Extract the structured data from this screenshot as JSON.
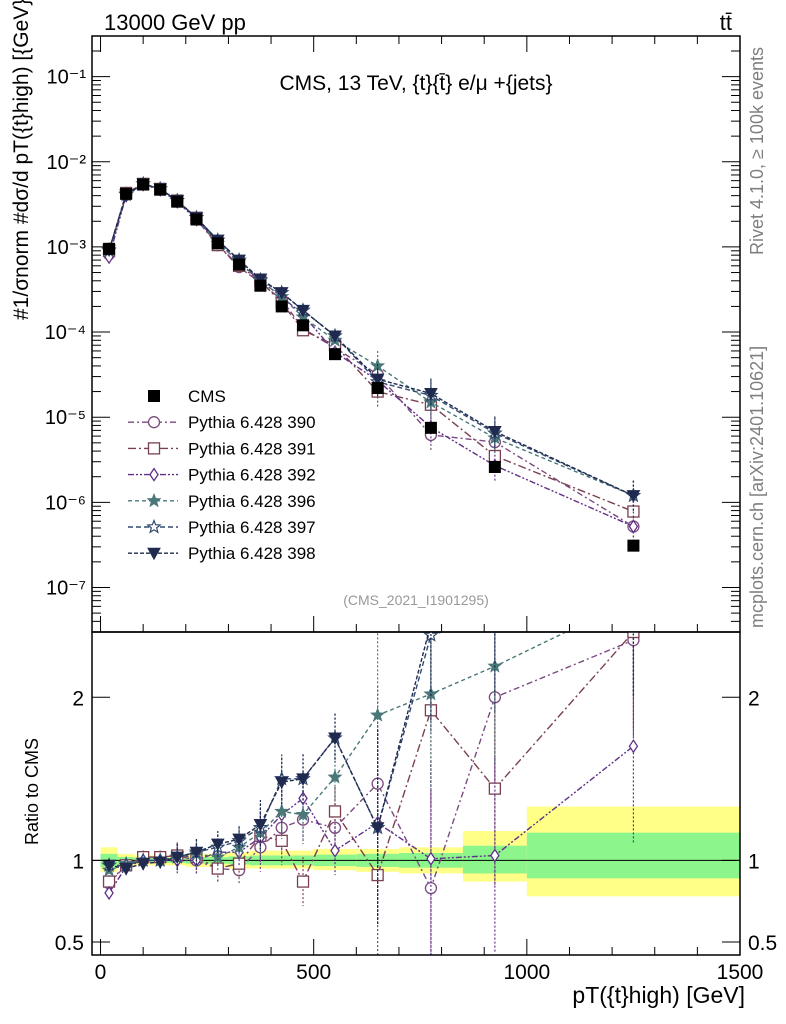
{
  "header": {
    "left": "13000 GeV pp",
    "right": "tt̄"
  },
  "side_labels": {
    "top": "Rivet 4.1.0, ≥ 100k events",
    "bottom": "mcplots.cern.ch [arXiv:2401.10621]"
  },
  "analysis_id": "(CMS_2021_I1901295)",
  "chart_data": [
    {
      "type": "line",
      "title": "CMS, 13 TeV, {t}{t̄} e/μ +{jets}",
      "ylabel": "#1/σnorm #dσ/d pT({t}high) [{GeV}⁻¹]",
      "yscale": "log",
      "xlim": [
        -20,
        1500
      ],
      "ylim": [
        3e-08,
        0.3
      ],
      "y_ticks": [
        {
          "v": 1e-07,
          "label": "10⁻⁷"
        },
        {
          "v": 1e-06,
          "label": "10⁻⁶"
        },
        {
          "v": 1e-05,
          "label": "10⁻⁵"
        },
        {
          "v": 0.0001,
          "label": "10⁻⁴"
        },
        {
          "v": 0.001,
          "label": "10⁻³"
        },
        {
          "v": 0.01,
          "label": "10⁻²"
        },
        {
          "v": 0.1,
          "label": "10⁻¹"
        }
      ],
      "x": [
        20,
        60,
        100,
        140,
        180,
        225,
        275,
        325,
        375,
        425,
        475,
        550,
        650,
        775,
        925,
        1250
      ],
      "cms": [
        0.00095,
        0.0042,
        0.0054,
        0.0047,
        0.0034,
        0.0021,
        0.0011,
        0.00062,
        0.00035,
        0.0002,
        0.00012,
        5.5e-05,
        2.2e-05,
        7.5e-06,
        2.6e-06,
        3.1e-07
      ],
      "series": [
        {
          "name": "Pythia 6.428 390",
          "color": "#7a4a80",
          "marker": "circle",
          "values": [
            0.00082,
            0.0041,
            0.0055,
            0.0048,
            0.0035,
            0.0021,
            0.00105,
            0.00058,
            0.00038,
            0.00024,
            0.00011,
            6.5e-05,
            3.2e-05,
            6.2e-06,
            5.1e-06,
            5.2e-07
          ]
        },
        {
          "name": "Pythia 6.428 391",
          "color": "#7a4050",
          "marker": "square",
          "values": [
            0.0009,
            0.0043,
            0.0055,
            0.0048,
            0.0035,
            0.0022,
            0.00105,
            0.0006,
            0.0004,
            0.00022,
            0.000105,
            7e-05,
            2e-05,
            1.4e-05,
            3.5e-06,
            7.8e-07
          ]
        },
        {
          "name": "Pythia 6.428 392",
          "color": "#60308a",
          "marker": "diamond",
          "values": [
            0.00076,
            0.004,
            0.0054,
            0.0047,
            0.0034,
            0.0021,
            0.00115,
            0.00065,
            0.0004,
            0.00026,
            0.00016,
            5.8e-05,
            2.7e-05,
            7.6e-06,
            2.7e-06,
            5.2e-07
          ]
        },
        {
          "name": "Pythia 6.428 396",
          "color": "#4a7878",
          "marker": "star",
          "values": [
            0.0009,
            0.0042,
            0.0055,
            0.0048,
            0.0035,
            0.0022,
            0.0011,
            0.00067,
            0.0004,
            0.00026,
            0.00015,
            8e-05,
            4e-05,
            1.5e-05,
            5.7e-06,
            1.2e-06
          ]
        },
        {
          "name": "Pythia 6.428 397",
          "color": "#304a70",
          "marker": "star-open",
          "values": [
            0.00092,
            0.0041,
            0.0055,
            0.0048,
            0.0035,
            0.0022,
            0.0012,
            0.0007,
            0.00041,
            0.00029,
            0.00018,
            9e-05,
            2.6e-05,
            1.8e-05,
            6.5e-06,
            1.2e-06
          ]
        },
        {
          "name": "Pythia 6.428 398",
          "color": "#1f2a4e",
          "marker": "triangle-down",
          "values": [
            0.00092,
            0.0041,
            0.0055,
            0.0048,
            0.0035,
            0.0022,
            0.0012,
            0.0007,
            0.00042,
            0.00029,
            0.00018,
            9e-05,
            2.8e-05,
            1.9e-05,
            6.8e-06,
            1.2e-06
          ]
        }
      ]
    },
    {
      "type": "line",
      "ylabel": "Ratio to CMS",
      "xlabel": "pT({t}high) [GeV]",
      "xlim": [
        -20,
        1500
      ],
      "ylim": [
        0.42,
        2.4
      ],
      "y_ticks": [
        {
          "v": 0.5,
          "label": "0.5"
        },
        {
          "v": 1,
          "label": "1"
        },
        {
          "v": 2,
          "label": "2"
        }
      ],
      "x_ticks": [
        {
          "v": 0,
          "label": "0"
        },
        {
          "v": 500,
          "label": "500"
        },
        {
          "v": 1000,
          "label": "1000"
        },
        {
          "v": 1500,
          "label": "1500"
        }
      ],
      "bands": [
        {
          "x0": 0,
          "x1": 40,
          "yellow": [
            0.93,
            1.08
          ],
          "green": [
            0.96,
            1.04
          ]
        },
        {
          "x0": 40,
          "x1": 80,
          "yellow": [
            0.96,
            1.04
          ],
          "green": [
            0.98,
            1.02
          ]
        },
        {
          "x0": 80,
          "x1": 200,
          "yellow": [
            0.97,
            1.03
          ],
          "green": [
            0.985,
            1.015
          ]
        },
        {
          "x0": 200,
          "x1": 250,
          "yellow": [
            0.96,
            1.04
          ],
          "green": [
            0.98,
            1.02
          ]
        },
        {
          "x0": 250,
          "x1": 300,
          "yellow": [
            0.96,
            1.04
          ],
          "green": [
            0.98,
            1.02
          ]
        },
        {
          "x0": 300,
          "x1": 350,
          "yellow": [
            0.95,
            1.05
          ],
          "green": [
            0.975,
            1.025
          ]
        },
        {
          "x0": 350,
          "x1": 400,
          "yellow": [
            0.95,
            1.06
          ],
          "green": [
            0.97,
            1.03
          ]
        },
        {
          "x0": 400,
          "x1": 450,
          "yellow": [
            0.95,
            1.06
          ],
          "green": [
            0.97,
            1.03
          ]
        },
        {
          "x0": 450,
          "x1": 500,
          "yellow": [
            0.95,
            1.06
          ],
          "green": [
            0.97,
            1.03
          ]
        },
        {
          "x0": 500,
          "x1": 600,
          "yellow": [
            0.94,
            1.07
          ],
          "green": [
            0.965,
            1.035
          ]
        },
        {
          "x0": 600,
          "x1": 700,
          "yellow": [
            0.93,
            1.07
          ],
          "green": [
            0.96,
            1.04
          ]
        },
        {
          "x0": 700,
          "x1": 850,
          "yellow": [
            0.92,
            1.08
          ],
          "green": [
            0.955,
            1.045
          ]
        },
        {
          "x0": 850,
          "x1": 1000,
          "yellow": [
            0.87,
            1.18
          ],
          "green": [
            0.92,
            1.09
          ]
        },
        {
          "x0": 1000,
          "x1": 1500,
          "yellow": [
            0.78,
            1.33
          ],
          "green": [
            0.89,
            1.17
          ]
        }
      ],
      "ratios": [
        {
          "values": [
            0.86,
            0.97,
            1.02,
            1.02,
            1.03,
            1.0,
            0.95,
            0.94,
            1.08,
            1.2,
            1.25,
            1.2,
            1.47,
            0.83,
            2.0,
            2.35
          ]
        },
        {
          "values": [
            0.87,
            0.97,
            1.02,
            1.02,
            1.03,
            1.02,
            0.95,
            0.98,
            1.15,
            1.12,
            0.87,
            1.3,
            0.91,
            1.92,
            1.44,
            2.4
          ]
        },
        {
          "values": [
            0.8,
            0.96,
            1.0,
            1.0,
            1.0,
            1.0,
            1.05,
            1.05,
            1.14,
            1.28,
            1.38,
            1.06,
            1.23,
            1.01,
            1.03,
            1.7
          ]
        },
        {
          "values": [
            0.94,
            0.98,
            1.0,
            1.0,
            1.02,
            1.04,
            1.02,
            1.08,
            1.17,
            1.3,
            1.28,
            1.51,
            1.89,
            2.02,
            2.19,
            2.6
          ]
        },
        {
          "values": [
            0.97,
            0.97,
            1.0,
            1.0,
            1.02,
            1.05,
            1.08,
            1.12,
            1.2,
            1.5,
            1.5,
            1.75,
            1.2,
            2.38,
            2.5,
            2.6
          ]
        },
        {
          "values": [
            0.97,
            0.95,
            0.98,
            0.99,
            1.02,
            1.05,
            1.1,
            1.13,
            1.22,
            1.48,
            1.5,
            1.75,
            1.2,
            2.45,
            2.6,
            2.6
          ]
        }
      ]
    }
  ]
}
